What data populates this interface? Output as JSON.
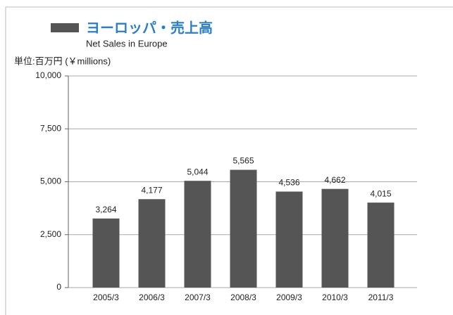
{
  "chart_data": {
    "type": "bar",
    "title": "ヨーロッパ・売上高",
    "subtitle": "Net Sales in Europe",
    "unit_label": "単位:百万円 (￥millions)",
    "categories": [
      "2005/3",
      "2006/3",
      "2007/3",
      "2008/3",
      "2009/3",
      "2010/3",
      "2011/3"
    ],
    "values": [
      3264,
      4177,
      5044,
      5565,
      4536,
      4662,
      4015
    ],
    "value_labels": [
      "3,264",
      "4,177",
      "5,044",
      "5,565",
      "4,536",
      "4,662",
      "4,015"
    ],
    "color": "#555555",
    "ylim": [
      0,
      10000
    ],
    "yticks": [
      0,
      {
        "value": 2500,
        "label": "2,500"
      },
      {
        "value": 5000,
        "label": "5,000"
      },
      {
        "value": 7500,
        "label": "7,500"
      },
      {
        "value": 10000,
        "label": "10,000"
      }
    ],
    "grid": true
  }
}
